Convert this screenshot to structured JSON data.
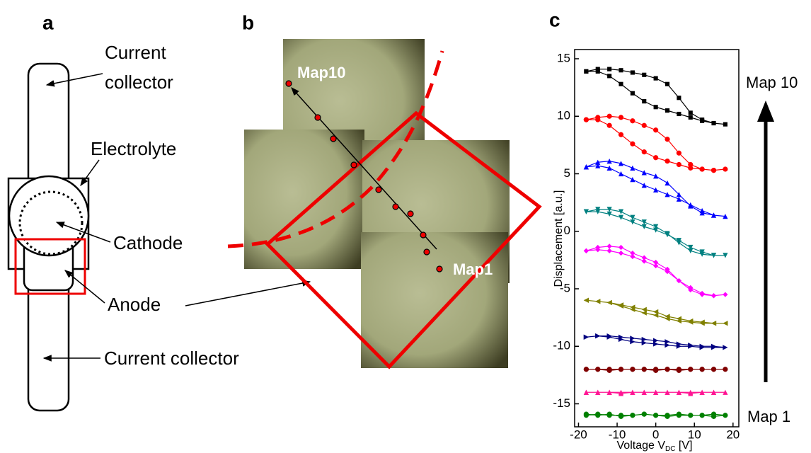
{
  "panel_a": {
    "letter": "a",
    "top_collector": [
      "Current",
      "collector"
    ],
    "electrolyte": "Electrolyte",
    "cathode": "Cathode",
    "anode": "Anode",
    "bottom_collector": "Current collector"
  },
  "panel_b": {
    "letter": "b",
    "map_start": "Map10",
    "map_end": "Map1"
  },
  "panel_c": {
    "letter": "c",
    "top_label": "Map 10",
    "bottom_label": "Map 1"
  },
  "chart_data": {
    "type": "line",
    "x_label": [
      "Voltage V",
      "DC",
      " [V]"
    ],
    "y_label": "Displacement [a.u.]",
    "xlim": [
      -21,
      21.5
    ],
    "ylim": [
      -17,
      15.8
    ],
    "xticks": [
      -20,
      -10,
      0,
      10,
      20
    ],
    "yticks": [
      15,
      10,
      5,
      0,
      -5,
      -10,
      -15
    ],
    "x": [
      -18,
      -15,
      -12,
      -9,
      -6,
      -3,
      0,
      3,
      6,
      9,
      12,
      15,
      18,
      15,
      12,
      9,
      6,
      3,
      0,
      -3,
      -6,
      -9,
      -12,
      -15,
      -18
    ],
    "series": [
      {
        "color": "#000000",
        "marker": "square",
        "values": [
          13.9,
          14.1,
          14.1,
          14.0,
          13.8,
          13.6,
          13.3,
          12.8,
          11.6,
          10.3,
          9.7,
          9.4,
          9.3,
          9.4,
          9.6,
          9.9,
          10.2,
          10.5,
          10.8,
          11.3,
          12.0,
          12.8,
          13.5,
          13.9,
          13.9
        ]
      },
      {
        "color": "#ff0000",
        "marker": "circle",
        "values": [
          9.7,
          9.9,
          10.0,
          9.9,
          9.6,
          9.2,
          8.8,
          8.0,
          6.8,
          5.8,
          5.4,
          5.3,
          5.4,
          5.3,
          5.4,
          5.5,
          5.8,
          6.1,
          6.4,
          6.9,
          7.6,
          8.4,
          9.2,
          9.7,
          9.7
        ]
      },
      {
        "color": "#0000ff",
        "marker": "triangle-up",
        "values": [
          5.6,
          6.0,
          6.1,
          5.9,
          5.5,
          5.1,
          4.8,
          4.2,
          3.2,
          2.2,
          1.6,
          1.4,
          1.3,
          1.4,
          1.8,
          2.3,
          2.8,
          3.2,
          3.6,
          4.0,
          4.5,
          5.0,
          5.5,
          5.7,
          5.6
        ]
      },
      {
        "color": "#008080",
        "marker": "triangle-down",
        "values": [
          1.7,
          1.9,
          1.9,
          1.7,
          1.2,
          0.8,
          0.4,
          -0.2,
          -1.0,
          -1.7,
          -2.0,
          -2.1,
          -2.1,
          -2.1,
          -1.8,
          -1.4,
          -0.8,
          -0.3,
          0.1,
          0.4,
          0.8,
          1.2,
          1.5,
          1.7,
          1.7
        ]
      },
      {
        "color": "#ff00ff",
        "marker": "diamond",
        "values": [
          -1.7,
          -1.4,
          -1.3,
          -1.4,
          -1.9,
          -2.3,
          -2.7,
          -3.3,
          -4.3,
          -5.1,
          -5.5,
          -5.6,
          -5.5,
          -5.6,
          -5.4,
          -4.9,
          -4.3,
          -3.5,
          -3.0,
          -2.6,
          -2.2,
          -1.9,
          -1.7,
          -1.6,
          -1.7
        ]
      },
      {
        "color": "#808000",
        "marker": "triangle-left",
        "values": [
          -6.0,
          -6.1,
          -6.2,
          -6.5,
          -6.8,
          -7.1,
          -7.3,
          -7.6,
          -7.8,
          -7.9,
          -8.0,
          -8.0,
          -8.0,
          -8.0,
          -7.9,
          -7.8,
          -7.6,
          -7.4,
          -7.0,
          -6.8,
          -6.6,
          -6.4,
          -6.2,
          -6.1,
          -6.0
        ]
      },
      {
        "color": "#000080",
        "marker": "triangle-right",
        "values": [
          -9.2,
          -9.1,
          -9.2,
          -9.4,
          -9.6,
          -9.7,
          -9.8,
          -9.9,
          -10.0,
          -10.0,
          -10.1,
          -10.1,
          -10.1,
          -10.0,
          -10.0,
          -9.9,
          -9.8,
          -9.6,
          -9.5,
          -9.4,
          -9.3,
          -9.2,
          -9.1,
          -9.1,
          -9.2
        ]
      },
      {
        "color": "#800000",
        "marker": "circle",
        "values": [
          -12.0,
          -12.0,
          -12.1,
          -12.0,
          -12.0,
          -12.0,
          -12.1,
          -12.0,
          -12.0,
          -12.0,
          -12.0,
          -12.0,
          -12.0,
          -12.0,
          -12.0,
          -12.0,
          -12.1,
          -12.0,
          -12.0,
          -12.0,
          -12.0,
          -12.0,
          -12.0,
          -12.0,
          -12.0
        ]
      },
      {
        "color": "#ff1493",
        "marker": "triangle-up",
        "values": [
          -14.0,
          -14.0,
          -14.0,
          -14.1,
          -14.0,
          -14.0,
          -14.0,
          -14.0,
          -14.0,
          -14.0,
          -14.0,
          -14.0,
          -14.0,
          -14.0,
          -14.0,
          -14.1,
          -14.0,
          -14.0,
          -14.0,
          -14.0,
          -14.0,
          -14.0,
          -14.0,
          -14.0,
          -14.0
        ]
      },
      {
        "color": "#008000",
        "marker": "circle",
        "values": [
          -15.9,
          -16.0,
          -15.9,
          -16.1,
          -16.0,
          -15.9,
          -16.0,
          -16.0,
          -15.9,
          -16.0,
          -16.0,
          -16.1,
          -16.0,
          -15.9,
          -16.0,
          -16.0,
          -16.0,
          -16.1,
          -16.0,
          -15.9,
          -16.0,
          -16.0,
          -16.0,
          -15.9,
          -16.0
        ]
      }
    ]
  }
}
